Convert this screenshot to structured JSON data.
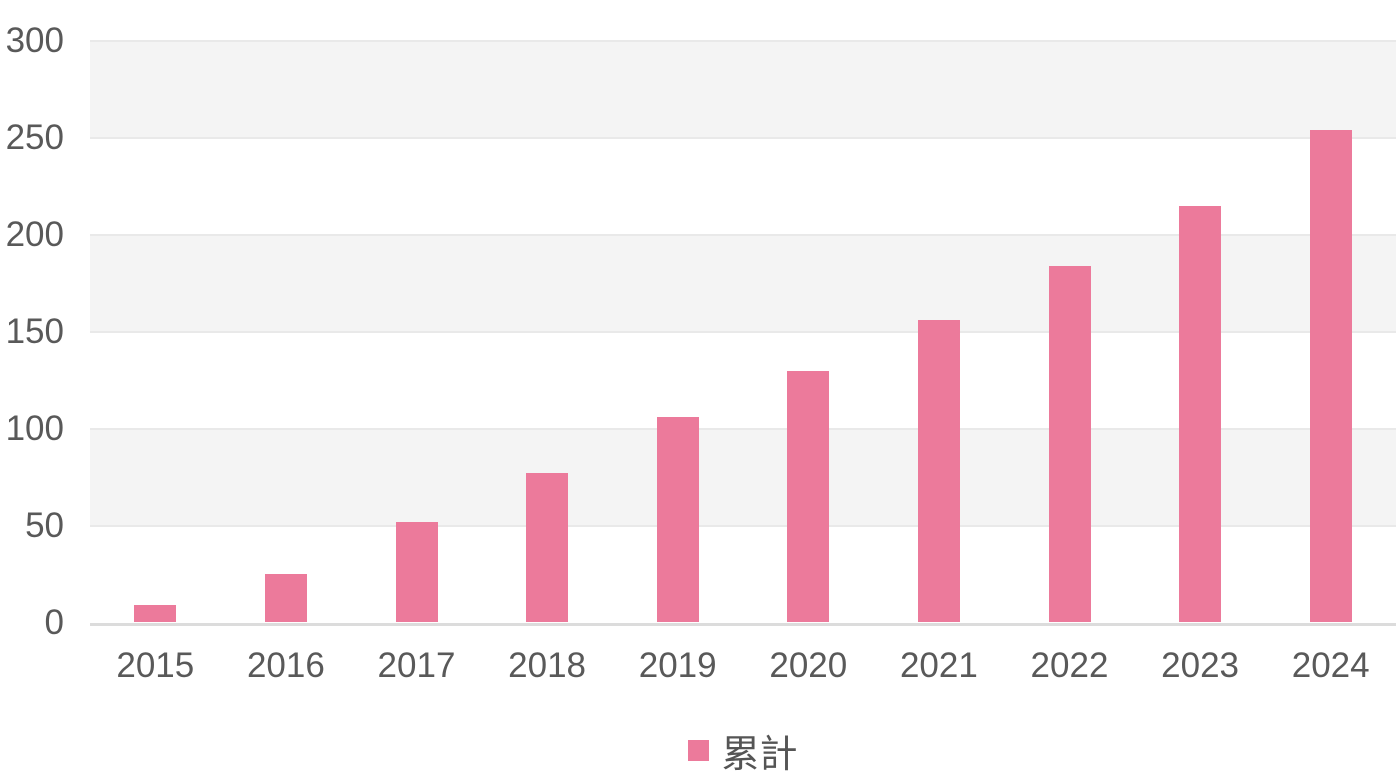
{
  "chart_data": {
    "type": "bar",
    "title": "",
    "categories": [
      "2015",
      "2016",
      "2017",
      "2018",
      "2019",
      "2020",
      "2021",
      "2022",
      "2023",
      "2024"
    ],
    "values": [
      9,
      25,
      52,
      77,
      106,
      130,
      156,
      184,
      215,
      254
    ],
    "legend": "累計",
    "legend_position": "bottom-center",
    "xlabel": "",
    "ylabel": "",
    "ylim": [
      0,
      300
    ],
    "yticks": [
      0,
      50,
      100,
      150,
      200,
      250,
      300
    ],
    "grid": "horizontal gridlines every 50 with alternating striped bands (gray on 50-100, 150-200, 250-300)",
    "colors": {
      "bar": "#ec7a9b",
      "band_gray": "#f4f4f4",
      "band_white": "#ffffff",
      "gridline": "#e9e9e9",
      "axis_line": "#dcdcdc",
      "label": "#595959",
      "legend_text": "#555555",
      "background": "#ffffff"
    }
  }
}
